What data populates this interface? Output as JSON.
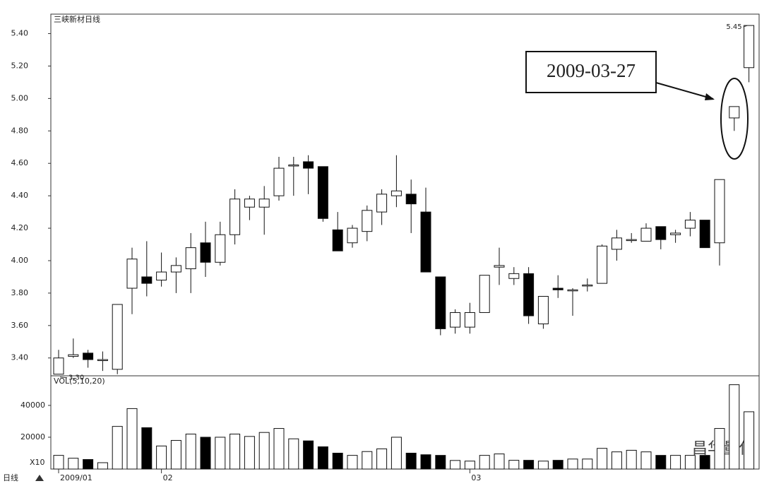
{
  "chart_data": [
    {
      "type": "candlestick",
      "title": "三峡新材日线",
      "categories": [
        "2009/01",
        null,
        null,
        null,
        null,
        null,
        null,
        "02",
        null,
        null,
        null,
        null,
        null,
        null,
        null,
        null,
        null,
        null,
        null,
        null,
        null,
        null,
        null,
        null,
        null,
        null,
        null,
        null,
        "03",
        null,
        null,
        null,
        null,
        null,
        null,
        null,
        null,
        null,
        null,
        null,
        null,
        null,
        null,
        null,
        null,
        null,
        null,
        null
      ],
      "open": [
        3.3,
        3.41,
        3.43,
        3.39,
        3.33,
        3.83,
        3.9,
        3.88,
        3.93,
        3.95,
        4.11,
        3.99,
        4.16,
        4.33,
        4.33,
        4.4,
        4.59,
        4.61,
        4.58,
        4.19,
        4.11,
        4.18,
        4.3,
        4.4,
        4.41,
        4.3,
        3.9,
        3.59,
        3.59,
        3.68,
        3.96,
        3.89,
        3.92,
        3.61,
        3.83,
        3.82,
        3.85,
        3.86,
        4.07,
        4.13,
        4.12,
        4.21,
        4.16,
        4.2,
        4.25,
        4.11,
        4.88,
        5.19
      ],
      "high": [
        3.45,
        3.52,
        3.45,
        3.44,
        3.73,
        4.08,
        4.12,
        4.05,
        4.02,
        4.17,
        4.24,
        4.24,
        4.44,
        4.4,
        4.46,
        4.64,
        4.64,
        4.65,
        4.58,
        4.3,
        4.22,
        4.34,
        4.44,
        4.65,
        4.5,
        4.45,
        3.9,
        3.7,
        3.74,
        3.91,
        4.08,
        3.96,
        3.96,
        3.78,
        3.91,
        3.83,
        3.89,
        4.1,
        4.19,
        4.17,
        4.23,
        4.21,
        4.19,
        4.3,
        4.25,
        4.5,
        4.95,
        5.45
      ],
      "low": [
        3.3,
        3.4,
        3.34,
        3.32,
        3.3,
        3.67,
        3.78,
        3.84,
        3.8,
        3.8,
        3.9,
        3.97,
        4.1,
        4.25,
        4.16,
        4.37,
        4.4,
        4.41,
        4.24,
        4.06,
        4.08,
        4.12,
        4.22,
        4.33,
        4.17,
        3.93,
        3.54,
        3.55,
        3.55,
        3.68,
        3.85,
        3.85,
        3.61,
        3.58,
        3.77,
        3.66,
        3.81,
        3.86,
        4.0,
        4.11,
        4.12,
        4.07,
        4.11,
        4.15,
        4.08,
        3.97,
        4.8,
        5.1
      ],
      "close": [
        3.4,
        3.42,
        3.39,
        3.39,
        3.73,
        4.01,
        3.86,
        3.93,
        3.97,
        4.08,
        3.99,
        4.16,
        4.38,
        4.38,
        4.38,
        4.57,
        4.59,
        4.57,
        4.26,
        4.06,
        4.2,
        4.31,
        4.41,
        4.43,
        4.35,
        3.93,
        3.58,
        3.68,
        3.68,
        3.91,
        3.97,
        3.92,
        3.66,
        3.78,
        3.82,
        3.82,
        3.85,
        4.09,
        4.14,
        4.13,
        4.2,
        4.13,
        4.17,
        4.25,
        4.08,
        4.5,
        4.95,
        5.45
      ],
      "up_color": "#ffffff",
      "down_color": "#000000",
      "ylim": [
        3.29,
        5.52
      ],
      "yticks": [
        {
          "value": 3.4,
          "label": "3.40"
        },
        {
          "value": 3.6,
          "label": "3.60"
        },
        {
          "value": 3.8,
          "label": "3.80"
        },
        {
          "value": 4.0,
          "label": "4.00"
        },
        {
          "value": 4.2,
          "label": "4.20"
        },
        {
          "value": 4.4,
          "label": "4.40"
        },
        {
          "value": 4.6,
          "label": "4.60"
        },
        {
          "value": 4.8,
          "label": "4.80"
        },
        {
          "value": 5.0,
          "label": "5.00"
        },
        {
          "value": 5.2,
          "label": "5.20"
        },
        {
          "value": 5.4,
          "label": "5.40"
        }
      ],
      "high_label": "5.45",
      "low_label": "3.30",
      "annotation": "2009-03-27",
      "period_label": "日线",
      "watermark": "昌华量化"
    },
    {
      "type": "bar",
      "title": "VOL(5,10,20)",
      "unit_label": "X10",
      "values": [
        8600,
        6800,
        6000,
        4000,
        26800,
        38000,
        26000,
        14500,
        18000,
        22000,
        20000,
        20000,
        22000,
        20500,
        23000,
        25500,
        19000,
        17700,
        14000,
        10000,
        8600,
        11000,
        12700,
        20000,
        10000,
        9000,
        8600,
        5400,
        5000,
        8600,
        9500,
        5500,
        5500,
        5000,
        5500,
        6300,
        6300,
        13000,
        10800,
        11800,
        10800,
        8600,
        8600,
        8600,
        8600,
        25500,
        53000,
        36000
      ],
      "ylim": [
        0,
        58600
      ],
      "yticks": [
        20000,
        40000
      ]
    }
  ]
}
